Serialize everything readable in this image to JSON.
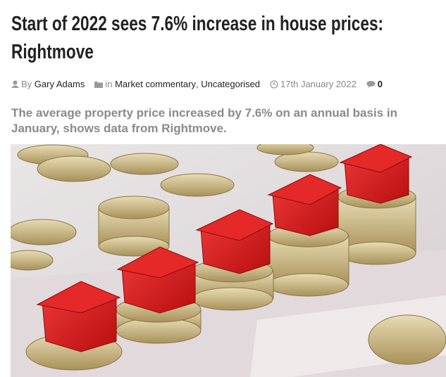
{
  "header": {
    "title": "Start of 2022 sees 7.6% increase in house prices: Rightmove"
  },
  "meta": {
    "by": "By",
    "author": "Gary Adams",
    "in": "in",
    "categories": [
      "Market commentary",
      "Uncategorised"
    ],
    "separator": ",",
    "date": "17th January 2022",
    "comments": "0"
  },
  "standfirst": "The average property price increased by 7.6% on an annual basis in January, shows data from Rightmove."
}
